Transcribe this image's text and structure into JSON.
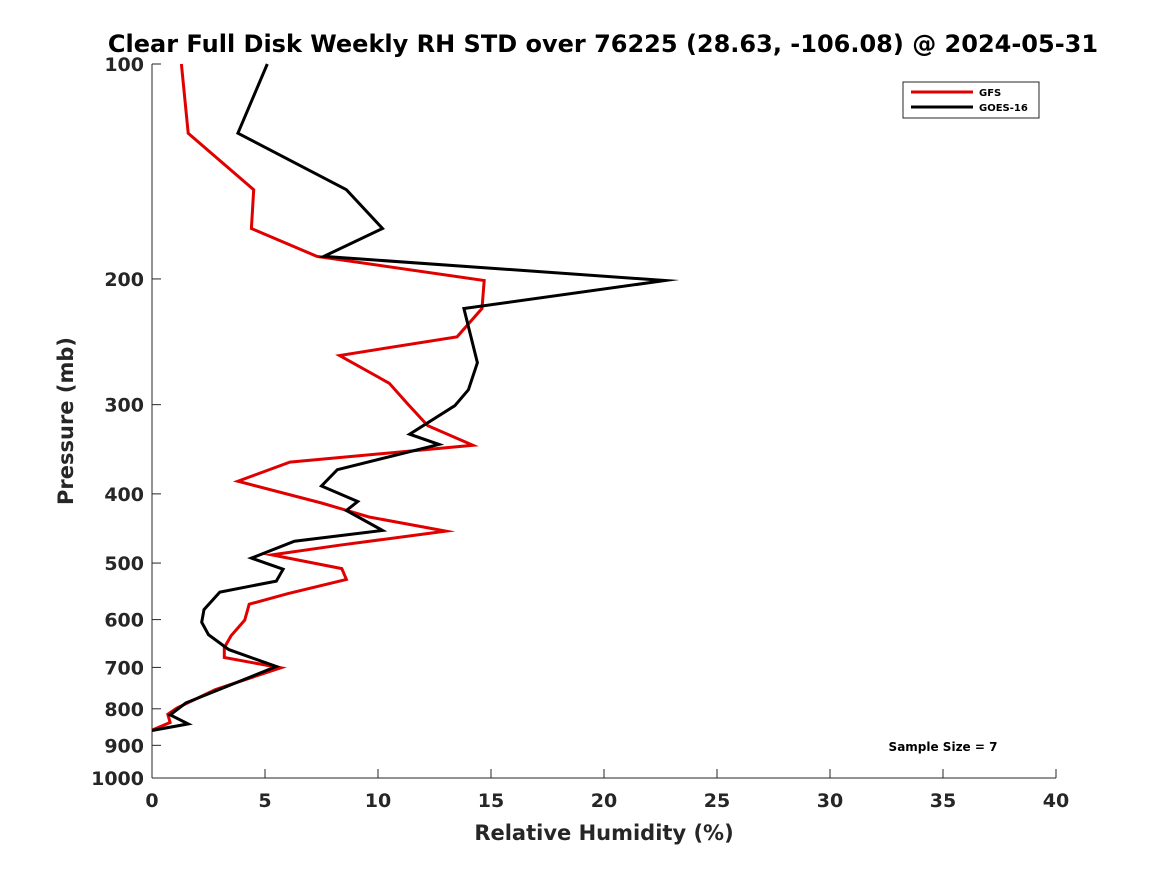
{
  "chart_data": {
    "type": "line",
    "title": "Clear Full Disk Weekly RH STD over 76225 (28.63, -106.08) @ 2024-05-31",
    "xlabel": "Relative Humidity (%)",
    "ylabel": "Pressure (mb)",
    "xlim": [
      0,
      40
    ],
    "ylim": [
      1000,
      100
    ],
    "y_scale": "log",
    "y_reversed": true,
    "x_ticks": [
      0,
      5,
      10,
      15,
      20,
      25,
      30,
      35,
      40
    ],
    "y_ticks": [
      100,
      200,
      300,
      400,
      500,
      600,
      700,
      800,
      900,
      1000
    ],
    "grid": false,
    "legend_position": "top-right",
    "annotation": "Sample Size = 7",
    "series": [
      {
        "name": "GFS",
        "color": "#e00000",
        "points": [
          [
            1.3,
            100
          ],
          [
            1.6,
            125
          ],
          [
            4.5,
            150
          ],
          [
            4.4,
            170
          ],
          [
            7.3,
            186
          ],
          [
            14.7,
            201
          ],
          [
            14.6,
            220
          ],
          [
            13.5,
            241
          ],
          [
            8.3,
            256
          ],
          [
            10.5,
            280
          ],
          [
            11.3,
            299
          ],
          [
            12.2,
            321
          ],
          [
            14.2,
            342
          ],
          [
            6.1,
            361
          ],
          [
            3.8,
            384
          ],
          [
            7.5,
            412
          ],
          [
            9.6,
            431
          ],
          [
            13.0,
            451
          ],
          [
            8.3,
            472
          ],
          [
            5.3,
            487
          ],
          [
            8.4,
            509
          ],
          [
            8.6,
            527
          ],
          [
            6.0,
            552
          ],
          [
            4.3,
            571
          ],
          [
            4.1,
            601
          ],
          [
            3.5,
            632
          ],
          [
            3.2,
            657
          ],
          [
            3.2,
            678
          ],
          [
            5.7,
            701
          ],
          [
            2.8,
            752
          ],
          [
            1.1,
            798
          ],
          [
            0.7,
            814
          ],
          [
            0.8,
            836
          ],
          [
            0,
            857
          ]
        ]
      },
      {
        "name": "GOES-16",
        "color": "#000000",
        "points": [
          [
            5.1,
            100
          ],
          [
            3.8,
            125
          ],
          [
            8.6,
            150
          ],
          [
            10.2,
            170
          ],
          [
            7.6,
            186
          ],
          [
            22.7,
            201
          ],
          [
            13.8,
            220
          ],
          [
            14.4,
            262
          ],
          [
            14.0,
            286
          ],
          [
            13.4,
            301
          ],
          [
            11.4,
            330
          ],
          [
            12.7,
            341
          ],
          [
            8.2,
            370
          ],
          [
            7.5,
            390
          ],
          [
            9.1,
            410
          ],
          [
            8.6,
            422
          ],
          [
            10.2,
            450
          ],
          [
            6.3,
            466
          ],
          [
            4.4,
            492
          ],
          [
            5.8,
            510
          ],
          [
            5.5,
            530
          ],
          [
            3.0,
            549
          ],
          [
            2.3,
            581
          ],
          [
            2.2,
            605
          ],
          [
            2.5,
            630
          ],
          [
            3.4,
            661
          ],
          [
            5.5,
            698
          ],
          [
            1.5,
            785
          ],
          [
            0.8,
            816
          ],
          [
            1.6,
            840
          ],
          [
            0,
            858
          ]
        ]
      }
    ]
  }
}
